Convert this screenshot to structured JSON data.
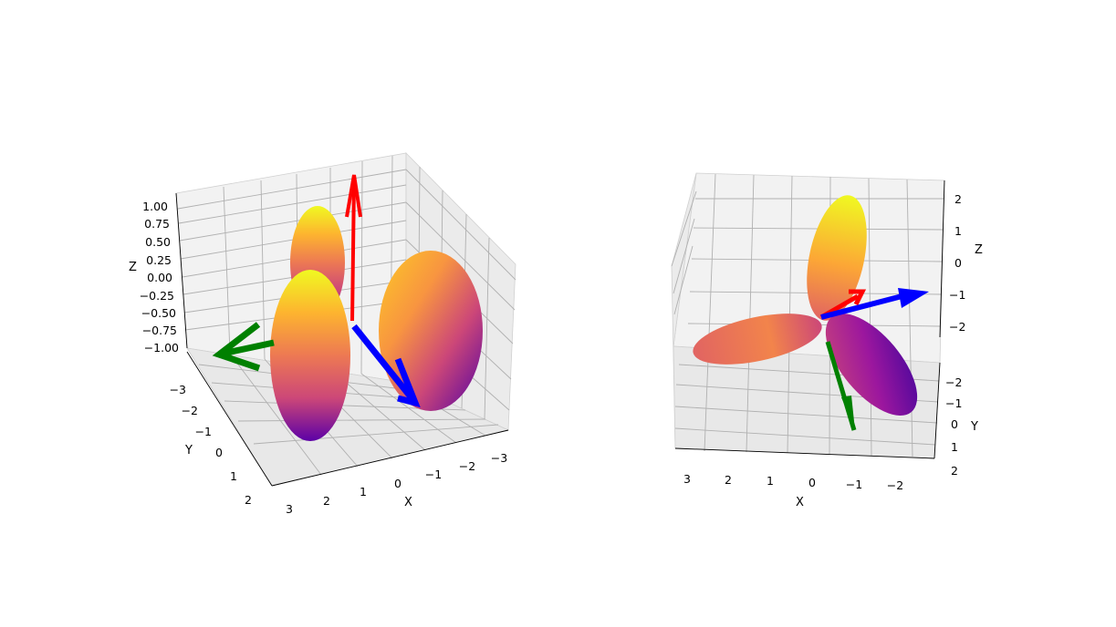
{
  "chart_data": [
    {
      "type": "surface3d",
      "title": "",
      "surface": "lobed orbital shape coloured with plasma colormap (purple to yellow)",
      "axes": {
        "x": {
          "label": "X",
          "ticks": [
            "3",
            "2",
            "1",
            "0",
            "−1",
            "−2",
            "−3"
          ],
          "range": [
            3,
            -3
          ]
        },
        "y": {
          "label": "Y",
          "ticks": [
            "−3",
            "−2",
            "−1",
            "0",
            "1",
            "2"
          ],
          "range": [
            -3,
            2
          ]
        },
        "z": {
          "label": "Z",
          "ticks": [
            "1.00",
            "0.75",
            "0.50",
            "0.25",
            "0.00",
            "−0.25",
            "−0.50",
            "−0.75",
            "−1.00"
          ],
          "range": [
            -1,
            1
          ]
        }
      },
      "arrows": [
        {
          "color": "#ff0000",
          "direction": "+Z"
        },
        {
          "color": "#008000",
          "direction": "-Y"
        },
        {
          "color": "#0000ff",
          "direction": "-X"
        }
      ],
      "grid": true
    },
    {
      "type": "surface3d",
      "title": "",
      "surface": "three-lobed orbital shape coloured with plasma colormap (purple to yellow)",
      "axes": {
        "x": {
          "label": "X",
          "ticks": [
            "3",
            "2",
            "1",
            "0",
            "−1",
            "−2"
          ],
          "range": [
            3,
            -2
          ]
        },
        "y": {
          "label": "Y",
          "ticks": [
            "−2",
            "−1",
            "0",
            "1",
            "2"
          ],
          "range": [
            -2,
            2
          ]
        },
        "z": {
          "label": "Z",
          "ticks": [
            "2",
            "1",
            "0",
            "−1",
            "−2"
          ],
          "range": [
            -2,
            2
          ]
        }
      },
      "arrows": [
        {
          "color": "#ff0000",
          "direction": "+X"
        },
        {
          "color": "#008000",
          "direction": "-Z"
        },
        {
          "color": "#0000ff",
          "direction": "+Y"
        }
      ],
      "grid": true
    }
  ]
}
